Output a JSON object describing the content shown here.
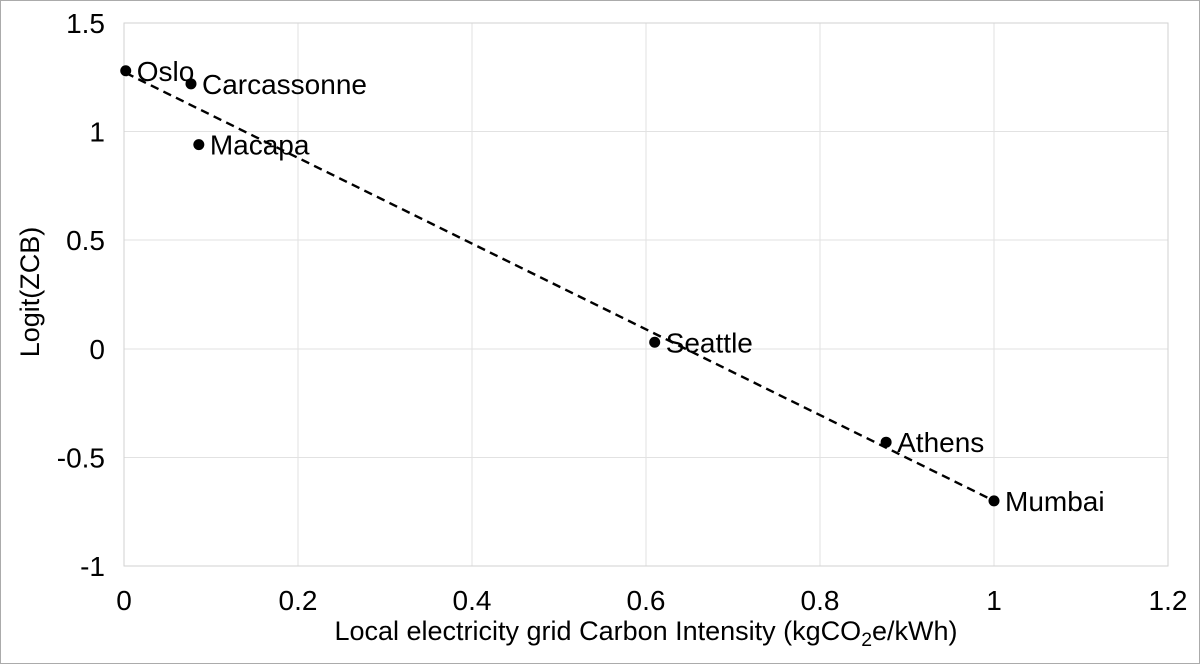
{
  "page": {
    "background": "#ffffff",
    "frame_border_color": "#ababab"
  },
  "chart_data": {
    "type": "scatter",
    "title": "",
    "xlabel_parts": [
      "Local electricity grid Carbon Intensity (kgCO",
      "2",
      "e/kWh)"
    ],
    "ylabel": "Logit(ZCB)",
    "xlim": [
      0,
      1.2
    ],
    "ylim": [
      -1,
      1.5
    ],
    "xticks": [
      0,
      0.2,
      0.4,
      0.6,
      0.8,
      1,
      1.2
    ],
    "xtick_labels": [
      "0",
      "0.2",
      "0.4",
      "0.6",
      "0.8",
      "1",
      "1.2"
    ],
    "yticks": [
      -1,
      -0.5,
      0,
      0.5,
      1,
      1.5
    ],
    "ytick_labels": [
      "-1",
      "-0.5",
      "0",
      "0.5",
      "1",
      "1.5"
    ],
    "grid": true,
    "legend": "none",
    "points": [
      {
        "label": "Oslo",
        "x": 0.002,
        "y": 1.28
      },
      {
        "label": "Carcassonne",
        "x": 0.077,
        "y": 1.22
      },
      {
        "label": "Macapa",
        "x": 0.086,
        "y": 0.94
      },
      {
        "label": "Seattle",
        "x": 0.61,
        "y": 0.03
      },
      {
        "label": "Athens",
        "x": 0.876,
        "y": -0.43
      },
      {
        "label": "Mumbai",
        "x": 1.0,
        "y": -0.7
      }
    ],
    "trendline": {
      "style": "dashed",
      "x1": 0.002,
      "y1": 1.27,
      "x2": 1.0,
      "y2": -0.7
    },
    "colors": {
      "point": "#000000",
      "point_label": "#000000",
      "trend": "#000000",
      "gridline": "#e2e2e2",
      "plot_border": "#d2d2d2",
      "tick_text": "#000000"
    }
  }
}
